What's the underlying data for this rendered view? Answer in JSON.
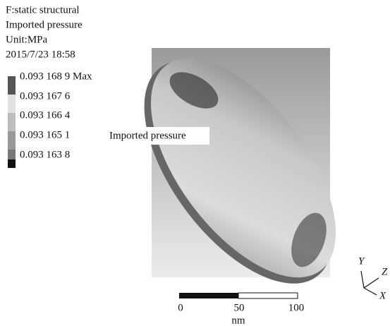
{
  "header": {
    "lines": [
      "F:static structural",
      "Imported pressure",
      "Unit:MPa",
      "2015/7/23  18:58"
    ]
  },
  "legend": {
    "entries": [
      "0.093 168 9 Max",
      "0.093 167 6",
      "0.093 166 4",
      "0.093 165 1",
      "0.093 163 8"
    ]
  },
  "annotation": "Imported pressure",
  "scale_bar": {
    "ticks": [
      0,
      50,
      100
    ],
    "unit": "nm"
  },
  "triad": {
    "y": "Y",
    "z": "Z",
    "x": "X"
  }
}
